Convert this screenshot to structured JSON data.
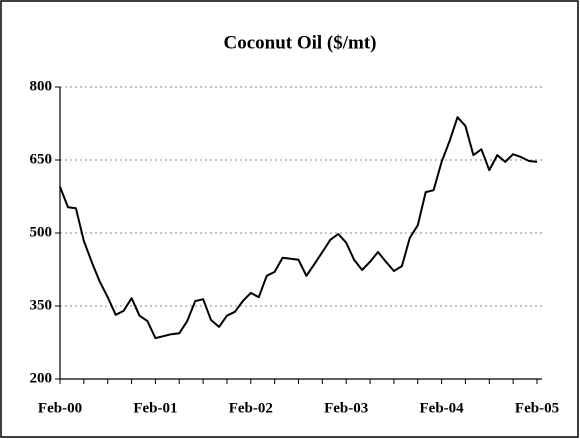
{
  "chart_data": {
    "type": "line",
    "title": "Coconut Oil ($/mt)",
    "categories": [
      "Feb-00",
      null,
      null,
      null,
      null,
      null,
      null,
      null,
      null,
      null,
      null,
      null,
      "Feb-01",
      null,
      null,
      null,
      null,
      null,
      null,
      null,
      null,
      null,
      null,
      null,
      "Feb-02",
      null,
      null,
      null,
      null,
      null,
      null,
      null,
      null,
      null,
      null,
      null,
      "Feb-03",
      null,
      null,
      null,
      null,
      null,
      null,
      null,
      null,
      null,
      null,
      null,
      "Feb-04",
      null,
      null,
      null,
      null,
      null,
      null,
      null,
      null,
      null,
      null,
      null,
      "Feb-05"
    ],
    "series": [
      {
        "name": "Coconut Oil",
        "color": "#000000",
        "values": [
          595,
          553,
          551,
          484,
          440,
          400,
          368,
          332,
          340,
          366,
          330,
          319,
          284,
          288,
          292,
          294,
          319,
          360,
          364,
          321,
          307,
          330,
          338,
          360,
          377,
          368,
          412,
          420,
          449,
          447,
          445,
          412,
          436,
          461,
          486,
          498,
          480,
          445,
          424,
          441,
          461,
          441,
          422,
          432,
          490,
          516,
          584,
          588,
          646,
          689,
          738,
          720,
          660,
          672,
          629,
          660,
          646,
          662,
          656,
          648,
          646
        ]
      }
    ],
    "ylim": [
      200,
      800
    ],
    "yticks": [
      200,
      350,
      500,
      650,
      800
    ],
    "grid": true
  }
}
